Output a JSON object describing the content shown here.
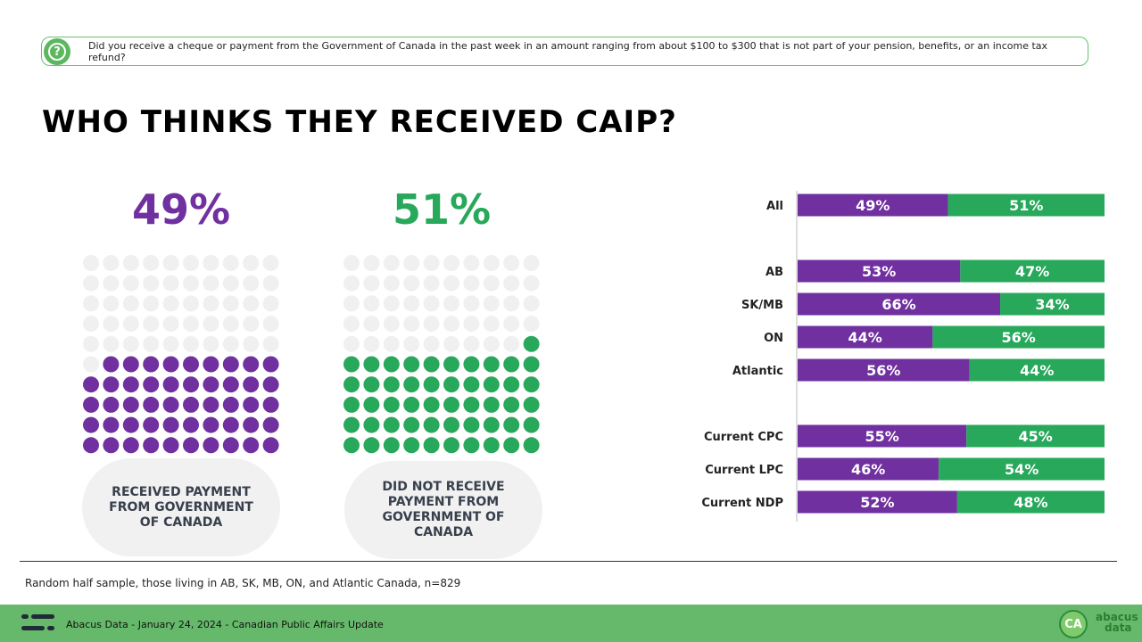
{
  "question": "Did you receive a cheque or payment from the Government of Canada in the past week  in an amount ranging from about $100 to $300 that is not part of your pension, benefits, or an income tax refund?",
  "title": "WHO THINKS THEY RECEIVED CAIP?",
  "colors": {
    "received": "#7030a0",
    "not_received": "#27a85a",
    "empty": "#f0f0f0"
  },
  "waffle": {
    "received": {
      "percent": "49%",
      "value": 49,
      "label": "RECEIVED PAYMENT FROM GOVERNMENT OF CANADA"
    },
    "not_received": {
      "percent": "51%",
      "value": 51,
      "label": "DID NOT RECEIVE PAYMENT FROM GOVERNMENT OF CANADA"
    }
  },
  "chart_data": {
    "type": "bar",
    "stacked": true,
    "orientation": "horizontal",
    "categories": [
      "All",
      "AB",
      "SK/MB",
      "ON",
      "Atlantic",
      "Current CPC",
      "Current LPC",
      "Current NDP"
    ],
    "series": [
      {
        "values": [
          49,
          53,
          66,
          44,
          56,
          55,
          46,
          52
        ],
        "labels": [
          "49%",
          "53%",
          "66%",
          "44%",
          "56%",
          "55%",
          "46%",
          "52%"
        ]
      },
      {
        "values": [
          51,
          47,
          34,
          56,
          44,
          45,
          54,
          48
        ],
        "labels": [
          "51%",
          "47%",
          "34%",
          "56%",
          "44%",
          "45%",
          "54%",
          "48%"
        ]
      }
    ]
  },
  "note": "Random half sample, those living in AB, SK, MB, ON, and Atlantic Canada, n=829",
  "footer": {
    "source": "Abacus Data - January 24, 2024 - Canadian Public Affairs Update",
    "ca_logo": "CA",
    "brand_line1": "abacus",
    "brand_line2": "data"
  }
}
